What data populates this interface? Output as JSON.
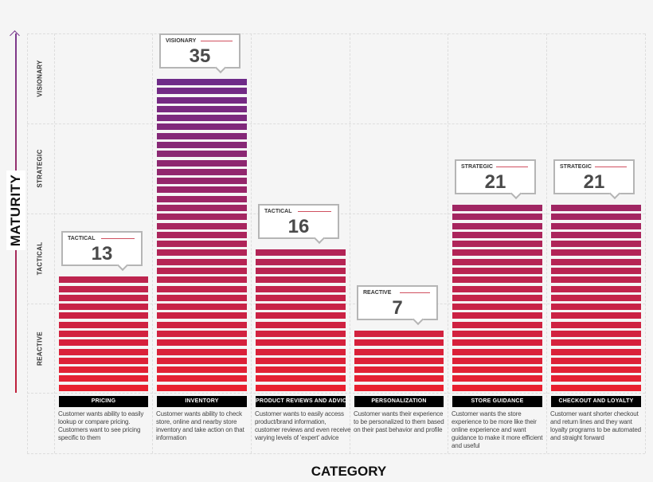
{
  "chart_data": {
    "type": "bar",
    "xlabel": "CATEGORY",
    "ylabel": "MATURITY",
    "y_levels": [
      "REACTIVE",
      "TACTICAL",
      "STRATEGIC",
      "VISIONARY"
    ],
    "ylim": [
      0,
      40
    ],
    "grid": true,
    "categories": [
      "PRICING",
      "INVENTORY",
      "PRODUCT REVIEWS AND ADVICE",
      "PERSONALIZATION",
      "STORE GUIDANCE",
      "CHECKOUT AND LOYALTY"
    ],
    "values": [
      13,
      35,
      16,
      7,
      21,
      21
    ],
    "value_levels": [
      "TACTICAL",
      "VISIONARY",
      "TACTICAL",
      "REACTIVE",
      "STRATEGIC",
      "STRATEGIC"
    ],
    "descriptions": [
      "Customer wants ability to easily lookup or compare pricing. Customers want to see pricing specific to them",
      "Customer wants ability to check store, online and nearby store inventory and take action on that information",
      "Customer wants to easily access product/brand information, customer reviews and even receive varying levels of 'expert' advice",
      "Customer wants their experience to be personalized to them based on their past behavior and profile",
      "Customer wants the store experience to be more like their online experience and want guidance to make it more efficient and useful",
      "Customer want shorter checkout and return lines and they want loyalty programs to be automated and straight forward"
    ],
    "colors": {
      "low": "#e8202f",
      "high": "#6e2a88",
      "label_bg": "#000000"
    }
  }
}
